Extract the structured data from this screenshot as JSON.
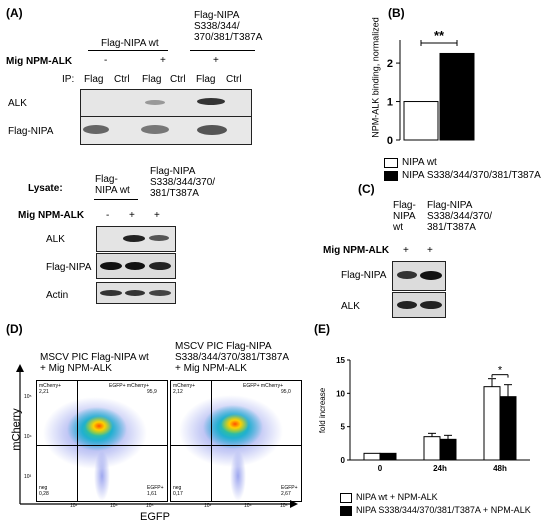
{
  "panel_labels": {
    "A": "(A)",
    "B": "(B)",
    "C": "(C)",
    "D": "(D)",
    "E": "(E)"
  },
  "panelA": {
    "ip_group1": "Flag-NIPA wt",
    "ip_group2": [
      "Flag-NIPA",
      "S338/344/",
      "370/381/T387A"
    ],
    "mig_label": "Mig NPM-ALK",
    "mig_values": [
      "-",
      "+",
      "+"
    ],
    "ip_label": "IP:",
    "ip_lanes": [
      "Flag",
      "Ctrl",
      "Flag",
      "Ctrl",
      "Flag",
      "Ctrl"
    ],
    "ip_rows": [
      "ALK",
      "Flag-NIPA"
    ],
    "lysate_label": "Lysate:",
    "lysate_group1": [
      "Flag-",
      "NIPA wt"
    ],
    "lysate_group2": [
      "Flag-NIPA",
      "S338/344/370/",
      "381/T387A"
    ],
    "lysate_mig_label": "Mig NPM-ALK",
    "lysate_mig_values": [
      "-",
      "+",
      "+"
    ],
    "lysate_rows": [
      "ALK",
      "Flag-NIPA",
      "Actin"
    ]
  },
  "panelC": {
    "group1": [
      "Flag-",
      "NIPA",
      "wt"
    ],
    "group2": [
      "Flag-NIPA",
      "S338/344/370/",
      "381/T387A"
    ],
    "mig_label": "Mig NPM-ALK",
    "mig_values": [
      "+",
      "+"
    ],
    "rows": [
      "Flag-NIPA",
      "ALK"
    ]
  },
  "panelD": {
    "title1": [
      "MSCV PIC Flag-NIPA wt",
      "+ Mig NPM-ALK"
    ],
    "title2": [
      "MSCV PIC Flag-NIPA",
      "S338/344/370/381/T387A",
      "+ Mig NPM-ALK"
    ],
    "ylabel": "mCherry",
    "xlabel": "EGFP",
    "plot1": {
      "q_tl_name": "mCherry+",
      "q_tl_val": "2,21",
      "q_tr_name": "EGFP+ mCherry+",
      "q_tr_val": "95,9",
      "q_bl_name": "neg",
      "q_bl_val": "0,28",
      "q_br_name": "EGFP+",
      "q_br_val": "1,61"
    },
    "plot2": {
      "q_tl_name": "mCherry+",
      "q_tl_val": "2,12",
      "q_tr_name": "EGFP+ mCherry+",
      "q_tr_val": "95,0",
      "q_bl_name": "neg",
      "q_bl_val": "0,17",
      "q_br_name": "EGFP+",
      "q_br_val": "2,67"
    },
    "ticks": [
      "10³",
      "10⁴",
      "10⁵"
    ]
  },
  "chart_data": [
    {
      "type": "bar",
      "panel": "B",
      "categories": [
        "NIPA wt",
        "NIPA S338/344/370/381/T387A"
      ],
      "values": [
        1.0,
        2.25
      ],
      "ylabel": "NPM-ALK binding, normalized",
      "ylim": [
        0,
        2.6
      ],
      "yticks": [
        "0",
        "1",
        "2"
      ],
      "significance": "**",
      "legend": [
        "NIPA wt",
        "NIPA S338/344/370/381/T387A"
      ],
      "colors": [
        "#ffffff",
        "#000000"
      ]
    },
    {
      "type": "bar",
      "panel": "E",
      "categories": [
        "0",
        "24h",
        "48h"
      ],
      "series": [
        {
          "name": "NIPA wt + NPM-ALK",
          "values": [
            1.0,
            3.5,
            11.0
          ],
          "errors": [
            0.0,
            0.5,
            1.2
          ]
        },
        {
          "name": "NIPA S338/344/370/381/T387A + NPM-ALK",
          "values": [
            1.0,
            3.1,
            9.5
          ],
          "errors": [
            0.0,
            0.6,
            1.8
          ]
        }
      ],
      "ylabel": "fold increase",
      "ylim": [
        0,
        15
      ],
      "yticks": [
        "0",
        "5",
        "10",
        "15"
      ],
      "significance": "*",
      "colors": [
        "#ffffff",
        "#000000"
      ]
    }
  ]
}
